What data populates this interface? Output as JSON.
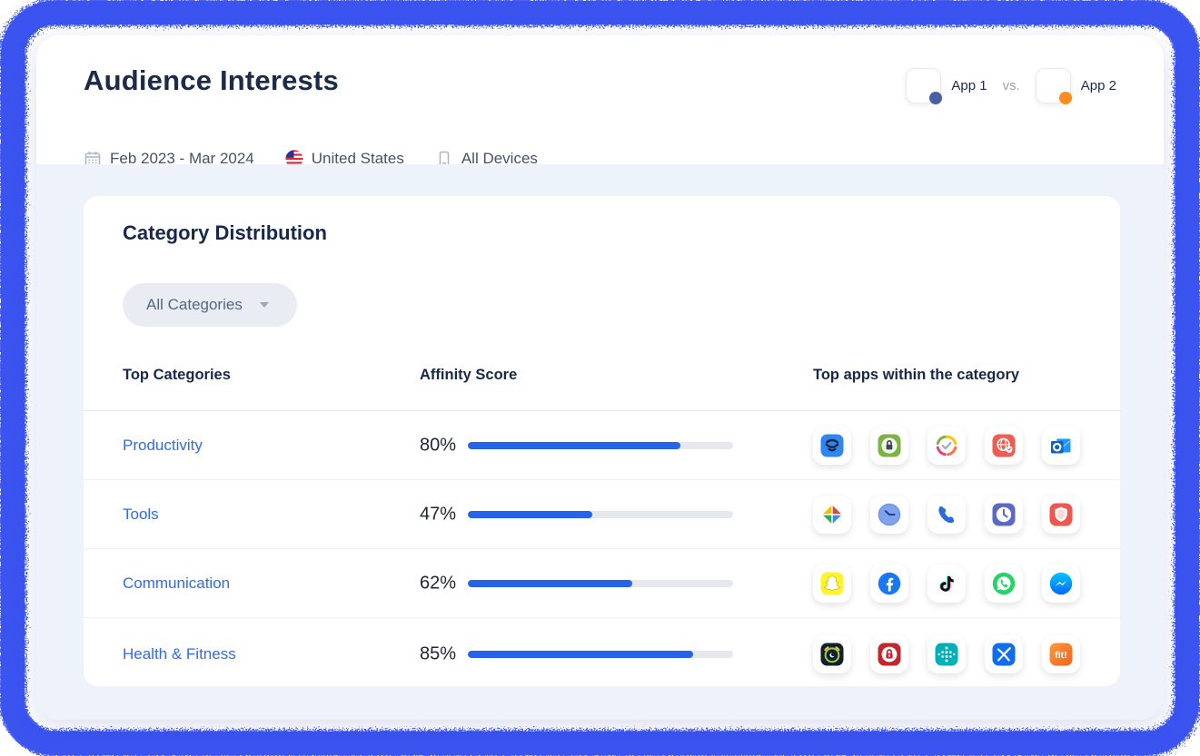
{
  "header": {
    "title": "Audience Interests",
    "filters": [
      {
        "icon": "calendar-icon",
        "label": "Feb 2023 - Mar 2024"
      },
      {
        "icon": "us-flag-icon",
        "label": "United States"
      },
      {
        "icon": "mobile-device-icon",
        "label": "All Devices"
      }
    ],
    "comparison": {
      "app1_label": "App 1",
      "vs_label": "vs.",
      "app2_label": "App 2",
      "app1_color": "#4A5DA8",
      "app2_color": "#FF8A1D"
    }
  },
  "card": {
    "title": "Category Distribution",
    "filter_label": "All Categories",
    "columns": {
      "categories": "Top Categories",
      "score": "Affinity Score",
      "apps": "Top apps within the category"
    },
    "rows": [
      {
        "category": "Productivity",
        "score": 80,
        "score_label": "80%",
        "apps": [
          "layers-shield",
          "applock",
          "ring-check",
          "private-browser",
          "outlook"
        ]
      },
      {
        "category": "Tools",
        "score": 47,
        "score_label": "47%",
        "apps": [
          "google-play-services",
          "clock",
          "phone-dialer",
          "clock-widget",
          "antivirus-shield"
        ]
      },
      {
        "category": "Communication",
        "score": 62,
        "score_label": "62%",
        "apps": [
          "snapchat",
          "facebook",
          "tiktok",
          "whatsapp",
          "messenger"
        ]
      },
      {
        "category": "Health & Fitness",
        "score": 85,
        "score_label": "85%",
        "apps": [
          "sleep-tracker",
          "privacy-lock",
          "fitbit",
          "myfitnesspal",
          "fit-app"
        ]
      }
    ]
  },
  "chart_data": {
    "type": "table",
    "title": "Category Distribution",
    "categories": [
      "Productivity",
      "Tools",
      "Communication",
      "Health & Fitness"
    ],
    "values": [
      80,
      47,
      62,
      85
    ],
    "value_format": "percent",
    "xlabel": "Affinity Score",
    "ylim": [
      0,
      100
    ]
  },
  "colors": {
    "frame_blue": "#3A53F0",
    "accent_blue": "#2563EB",
    "link_blue": "#2F6BF2",
    "body_background": "#EDF2FB"
  }
}
